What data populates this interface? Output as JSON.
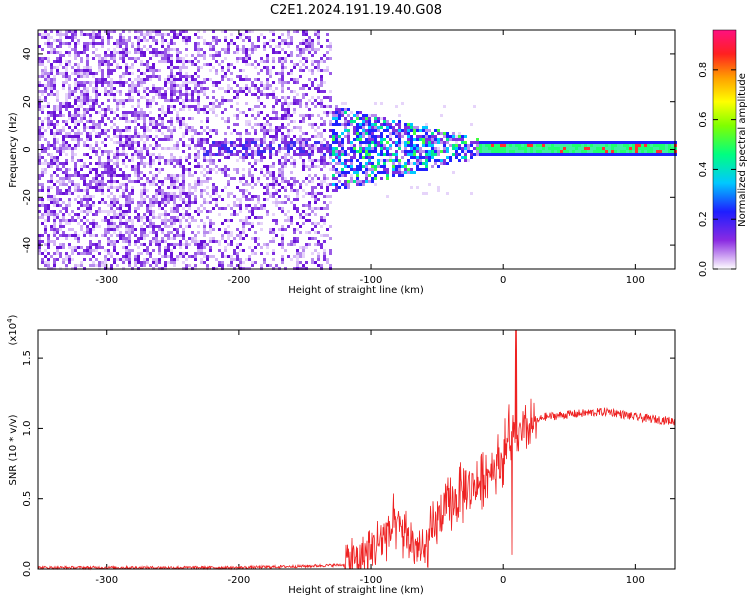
{
  "title": "C2E1.2024.191.19.40.G08",
  "colors": {
    "snr_line": "#ee2222",
    "frame": "#000000"
  },
  "chart_data": [
    {
      "type": "heatmap",
      "xlabel": "Height of straight line (km)",
      "ylabel": "Frequency (Hz)",
      "xlim": [
        -352,
        130
      ],
      "ylim": [
        -50,
        50
      ],
      "x_ticks": [
        "-300",
        "-200",
        "-100",
        "0",
        "100"
      ],
      "x_tick_values": [
        -300,
        -200,
        -100,
        0,
        100
      ],
      "y_ticks": [
        "-40",
        "-20",
        "0",
        "20",
        "40"
      ],
      "y_tick_values": [
        -40,
        -20,
        0,
        20,
        40
      ],
      "band_center_hz": 1,
      "band_halfwidth_hz": 3,
      "colorbar": {
        "label": "Normalized spectral amplitude",
        "ticks": [
          "0.0",
          "0.2",
          "0.4",
          "0.6",
          "0.8"
        ],
        "tick_values": [
          0.0,
          0.2,
          0.4,
          0.6,
          0.8
        ],
        "range": [
          0,
          0.96
        ]
      }
    },
    {
      "type": "line",
      "xlabel": "Height of straight line (km)",
      "ylabel": "SNR (10 * v/v)",
      "y_multiplier": "(x10",
      "y_multiplier_exp": "4",
      "y_multiplier_close": ")",
      "xlim": [
        -352,
        130
      ],
      "ylim": [
        0,
        1.7
      ],
      "x_ticks": [
        "-300",
        "-200",
        "-100",
        "0",
        "100"
      ],
      "x_tick_values": [
        -300,
        -200,
        -100,
        0,
        100
      ],
      "y_ticks": [
        "0.0",
        "0.5",
        "1.0",
        "1.5"
      ],
      "y_tick_values": [
        0.0,
        0.5,
        1.0,
        1.5
      ],
      "series": [
        {
          "x": [
            -350,
            -300,
            -250,
            -200,
            -150,
            -120,
            -100,
            -90,
            -80,
            -70,
            -60,
            -50,
            -40,
            -30,
            -20,
            -10,
            0,
            5,
            10,
            20,
            30,
            50,
            80,
            100,
            130
          ],
          "values": [
            0.01,
            0.01,
            0.01,
            0.01,
            0.02,
            0.03,
            0.12,
            0.25,
            0.3,
            0.2,
            0.1,
            0.35,
            0.45,
            0.55,
            0.6,
            0.7,
            0.8,
            0.95,
            0.9,
            1.0,
            1.08,
            1.1,
            1.12,
            1.08,
            1.05
          ]
        }
      ]
    }
  ]
}
